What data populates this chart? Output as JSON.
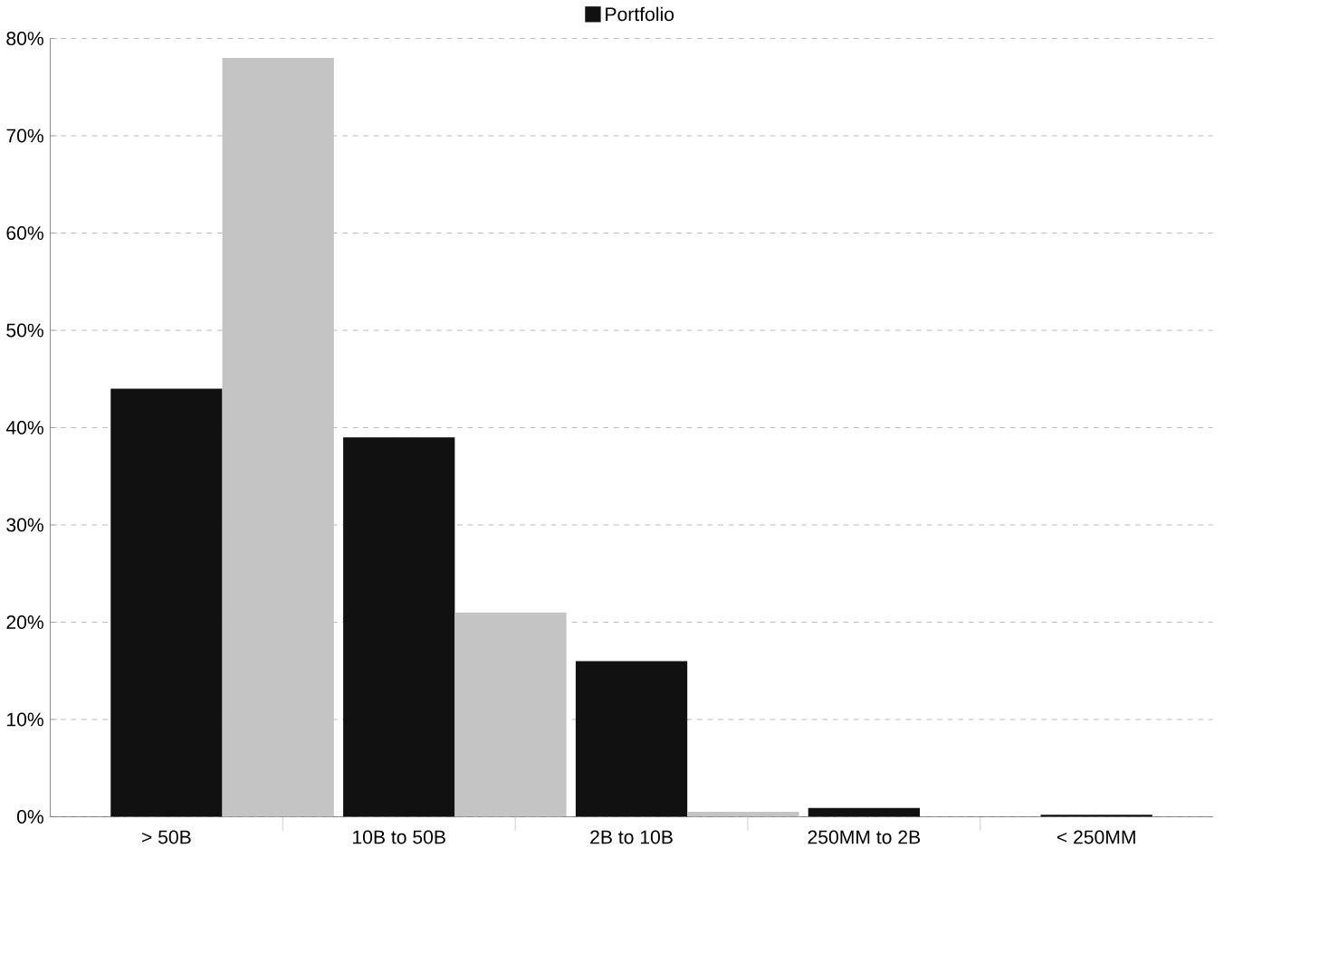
{
  "chart_data": {
    "type": "bar",
    "categories": [
      "> 50B",
      "10B to 50B",
      "2B to 10B",
      "250MM to 2B",
      "< 250MM"
    ],
    "series": [
      {
        "name": "Portfolio",
        "color": "#111111",
        "values": [
          44,
          39,
          16,
          0.9,
          0.2
        ]
      },
      {
        "color": "#c4c4c4",
        "values": [
          78,
          21,
          0.5,
          null,
          0
        ]
      }
    ],
    "ylim": [
      0,
      80
    ],
    "yticks": [
      {
        "value": 0,
        "label": "0%"
      },
      {
        "value": 10,
        "label": "10%"
      },
      {
        "value": 20,
        "label": "20%"
      },
      {
        "value": 30,
        "label": "30%"
      },
      {
        "value": 40,
        "label": "40%"
      },
      {
        "value": 50,
        "label": "50%"
      },
      {
        "value": 60,
        "label": "60%"
      },
      {
        "value": 70,
        "label": "70%"
      },
      {
        "value": 80,
        "label": "80%"
      }
    ],
    "grid": "y",
    "legend": "top"
  }
}
